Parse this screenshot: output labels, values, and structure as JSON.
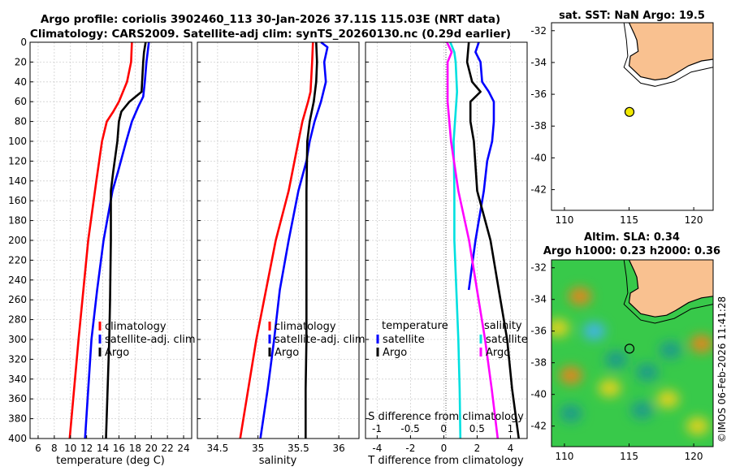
{
  "title": {
    "line1": "Argo profile: coriolis 3902460_113 30-Jan-2026 37.11S 115.03E (NRT data)",
    "line2": "Climatology: CARS2009. Satellite-adj clim: synTS_20260130.nc (0.29d earlier)"
  },
  "timestamp": "©IMOS 06-Feb-2026 11:41:28",
  "colors": {
    "climatology": "#ff0000",
    "satellite": "#0000ff",
    "argo": "#000000",
    "temp_diff": "#00e0e0",
    "sal_diff": "#ff00ff",
    "land": "#f9c190"
  },
  "chart_data": [
    {
      "type": "line",
      "id": "temperature",
      "xlabel": "temperature (deg C)",
      "ylabel": "",
      "xlim": [
        5,
        25
      ],
      "ylim": [
        400,
        0
      ],
      "xticks": [
        6,
        8,
        10,
        12,
        14,
        16,
        18,
        20,
        22,
        24
      ],
      "yticks": [
        0,
        20,
        40,
        60,
        80,
        100,
        120,
        140,
        160,
        180,
        200,
        220,
        240,
        260,
        280,
        300,
        320,
        340,
        360,
        380,
        400
      ],
      "legend": [
        "climatology",
        "satellite-adj. clim",
        "Argo"
      ],
      "series": [
        {
          "name": "climatology",
          "color": "#ff0000",
          "depth": [
            0,
            20,
            40,
            60,
            70,
            80,
            100,
            140,
            200,
            300,
            400
          ],
          "values": [
            17.6,
            17.5,
            17.0,
            16.0,
            15.3,
            14.5,
            13.9,
            13.2,
            12.2,
            11.0,
            9.9
          ]
        },
        {
          "name": "satellite-adj. clim",
          "color": "#0000ff",
          "depth": [
            0,
            20,
            40,
            55,
            65,
            80,
            100,
            130,
            150,
            200,
            250,
            300,
            400
          ],
          "values": [
            19.7,
            19.4,
            19.2,
            19.0,
            18.4,
            17.6,
            16.9,
            15.9,
            15.2,
            14.1,
            13.3,
            12.6,
            11.8
          ]
        },
        {
          "name": "Argo",
          "color": "#000000",
          "depth": [
            0,
            10,
            20,
            50,
            60,
            70,
            80,
            100,
            130,
            150,
            200,
            260,
            300,
            350,
            400
          ],
          "values": [
            19.3,
            19.1,
            19.0,
            18.8,
            17.3,
            16.3,
            16.0,
            15.8,
            15.3,
            15.0,
            15.0,
            14.9,
            14.8,
            14.6,
            14.4
          ]
        }
      ]
    },
    {
      "type": "line",
      "id": "salinity",
      "xlabel": "salinity",
      "ylabel": "",
      "xlim": [
        34.25,
        36.25
      ],
      "ylim": [
        400,
        0
      ],
      "xticks": [
        34.5,
        35,
        35.5,
        36
      ],
      "legend": [
        "climatology",
        "satellite-adj. clim",
        "Argo"
      ],
      "series": [
        {
          "name": "climatology",
          "color": "#ff0000",
          "depth": [
            0,
            20,
            50,
            60,
            80,
            100,
            150,
            200,
            300,
            400
          ],
          "values": [
            35.68,
            35.67,
            35.65,
            35.62,
            35.55,
            35.5,
            35.38,
            35.22,
            34.98,
            34.78
          ]
        },
        {
          "name": "satellite-adj. clim",
          "color": "#0000ff",
          "depth": [
            0,
            5,
            20,
            40,
            60,
            80,
            100,
            120,
            150,
            200,
            250,
            300,
            350,
            400
          ],
          "values": [
            35.78,
            35.86,
            35.82,
            35.84,
            35.78,
            35.7,
            35.64,
            35.6,
            35.5,
            35.38,
            35.27,
            35.2,
            35.12,
            35.03
          ]
        },
        {
          "name": "Argo",
          "color": "#000000",
          "depth": [
            0,
            20,
            40,
            60,
            80,
            100,
            150,
            200,
            260,
            300,
            350,
            400
          ],
          "values": [
            35.72,
            35.73,
            35.72,
            35.69,
            35.64,
            35.61,
            35.6,
            35.6,
            35.6,
            35.6,
            35.59,
            35.59
          ]
        }
      ]
    },
    {
      "type": "line",
      "id": "difference",
      "xlabel": "T difference from climatology",
      "x2label": "S difference from climatology",
      "xlim": [
        -4.7,
        5.0
      ],
      "ylim": [
        400,
        0
      ],
      "xticks": [
        -4,
        -2,
        0,
        2,
        4
      ],
      "x2lim": [
        -1.17,
        1.25
      ],
      "x2ticks": [
        -1,
        -0.5,
        0,
        0.5,
        1
      ],
      "legend_temperature": {
        "heading": "temperature",
        "entries": [
          "satellite",
          "Argo"
        ]
      },
      "legend_salinity": {
        "heading": "salinity",
        "entries": [
          "satellite",
          "Argo"
        ]
      },
      "series": [
        {
          "name": "temperature satellite",
          "color": "#0000ff",
          "axis": "T",
          "depth": [
            0,
            10,
            20,
            40,
            50,
            60,
            70,
            80,
            100,
            120,
            150,
            200,
            250
          ],
          "values": [
            2.1,
            1.9,
            2.2,
            2.3,
            2.7,
            3.0,
            3.0,
            3.0,
            2.9,
            2.6,
            2.4,
            1.9,
            1.5
          ]
        },
        {
          "name": "temperature Argo",
          "color": "#000000",
          "axis": "T",
          "depth": [
            0,
            20,
            40,
            50,
            60,
            80,
            100,
            150,
            200,
            250,
            300,
            350,
            400
          ],
          "values": [
            1.5,
            1.4,
            1.7,
            2.2,
            1.6,
            1.6,
            1.8,
            2.0,
            2.8,
            3.3,
            3.8,
            4.1,
            4.5
          ]
        },
        {
          "name": "salinity satellite",
          "color": "#00e0e0",
          "axis": "S",
          "depth": [
            0,
            10,
            20,
            50,
            100,
            150,
            200,
            300,
            350,
            400
          ],
          "values": [
            0.1,
            0.16,
            0.18,
            0.2,
            0.15,
            0.16,
            0.16,
            0.22,
            0.24,
            0.25
          ]
        },
        {
          "name": "salinity Argo",
          "color": "#ff00ff",
          "axis": "S",
          "depth": [
            0,
            10,
            20,
            60,
            100,
            150,
            200,
            250,
            300,
            350,
            400
          ],
          "values": [
            0.05,
            0.12,
            0.06,
            0.06,
            0.11,
            0.22,
            0.38,
            0.5,
            0.62,
            0.72,
            0.81
          ]
        }
      ]
    },
    {
      "type": "scatter",
      "id": "sst_map",
      "title": "sat. SST: NaN Argo: 19.5",
      "xlim": [
        109,
        121.5
      ],
      "ylim": [
        -43.3,
        -31.5
      ],
      "xticks": [
        110,
        115,
        120
      ],
      "yticks": [
        -42,
        -40,
        -38,
        -36,
        -34,
        -32
      ],
      "points": [
        {
          "lon": 115.03,
          "lat": -37.11
        }
      ]
    },
    {
      "type": "heatmap",
      "id": "sla_map",
      "title1": "Altim. SLA: 0.34",
      "title2": "Argo h1000: 0.23 h2000: 0.36",
      "xlim": [
        109,
        121.5
      ],
      "ylim": [
        -43.3,
        -31.5
      ],
      "xticks": [
        110,
        115,
        120
      ],
      "yticks": [
        -42,
        -40,
        -38,
        -36,
        -34,
        -32
      ],
      "points": [
        {
          "lon": 115.03,
          "lat": -37.11
        }
      ],
      "blobs": [
        {
          "lon": 111.2,
          "lat": -33.8,
          "value": 0.45
        },
        {
          "lon": 110.5,
          "lat": -38.8,
          "value": 0.4
        },
        {
          "lon": 120.6,
          "lat": -36.8,
          "value": 0.4
        },
        {
          "lon": 118.0,
          "lat": -40.3,
          "value": 0.3
        },
        {
          "lon": 113.5,
          "lat": -39.6,
          "value": 0.3
        },
        {
          "lon": 112.3,
          "lat": -36.0,
          "value": -0.4
        },
        {
          "lon": 114.0,
          "lat": -37.8,
          "value": -0.3
        },
        {
          "lon": 116.4,
          "lat": -38.6,
          "value": -0.3
        },
        {
          "lon": 118.2,
          "lat": -37.2,
          "value": -0.28
        },
        {
          "lon": 116.0,
          "lat": -41.0,
          "value": -0.28
        },
        {
          "lon": 110.5,
          "lat": -41.2,
          "value": -0.25
        },
        {
          "lon": 120.3,
          "lat": -42.0,
          "value": 0.25
        },
        {
          "lon": 109.5,
          "lat": -35.8,
          "value": 0.2
        }
      ]
    }
  ]
}
